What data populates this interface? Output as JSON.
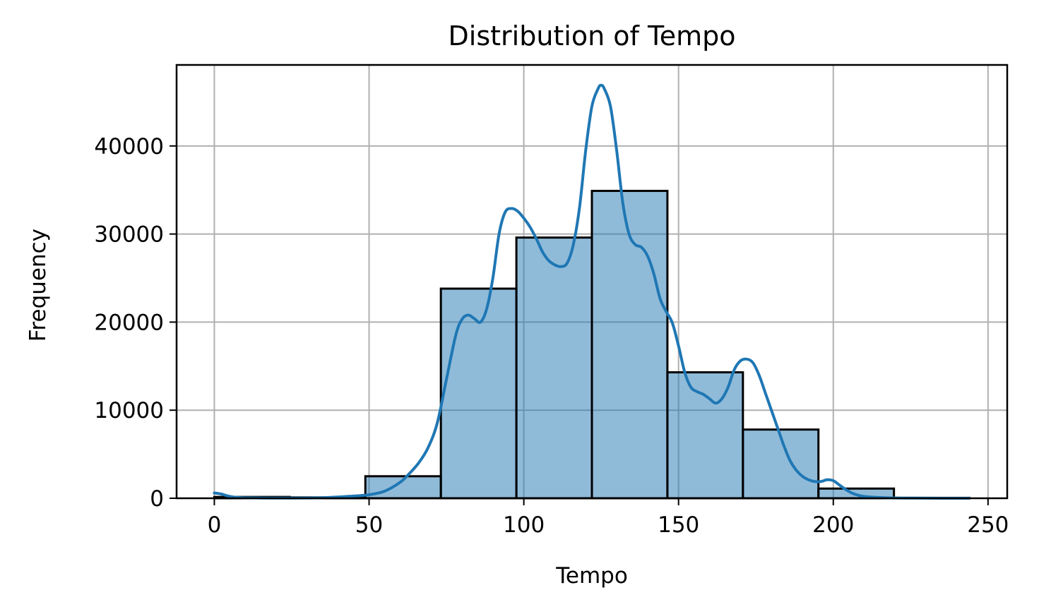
{
  "chart_data": {
    "type": "bar",
    "title": "Distribution of Tempo",
    "xlabel": "Tempo",
    "ylabel": "Frequency",
    "xlim": [
      -12.2,
      256.2
    ],
    "ylim": [
      0,
      49200
    ],
    "xticks": [
      0,
      50,
      100,
      150,
      200,
      250
    ],
    "xtick_labels": [
      "0",
      "50",
      "100",
      "150",
      "200",
      "250"
    ],
    "yticks": [
      0,
      10000,
      20000,
      30000,
      40000
    ],
    "ytick_labels": [
      "0",
      "10000",
      "20000",
      "30000",
      "40000"
    ],
    "grid": true,
    "bar_color": "#1f77b4",
    "bar_edge_color": "#000000",
    "kde_color": "#1f77b4",
    "bins": [
      {
        "x0": 0.0,
        "x1": 24.4,
        "count": 150
      },
      {
        "x0": 24.4,
        "x1": 48.8,
        "count": 100
      },
      {
        "x0": 48.8,
        "x1": 73.2,
        "count": 2500
      },
      {
        "x0": 73.2,
        "x1": 97.6,
        "count": 23800
      },
      {
        "x0": 97.6,
        "x1": 122.0,
        "count": 29600
      },
      {
        "x0": 122.0,
        "x1": 146.4,
        "count": 34900
      },
      {
        "x0": 146.4,
        "x1": 170.8,
        "count": 14300
      },
      {
        "x0": 170.8,
        "x1": 195.2,
        "count": 7800
      },
      {
        "x0": 195.2,
        "x1": 219.6,
        "count": 1100
      },
      {
        "x0": 219.6,
        "x1": 244.0,
        "count": 50
      }
    ],
    "kde": {
      "x": [
        0,
        2,
        4,
        6,
        8,
        10,
        15,
        20,
        25,
        30,
        35,
        40,
        45,
        50,
        55,
        60,
        63,
        66,
        69,
        72,
        75,
        78,
        80,
        82,
        84,
        86,
        88,
        90,
        92,
        94,
        96,
        98,
        100,
        102,
        104,
        106,
        108,
        110,
        112,
        114,
        116,
        118,
        120,
        122,
        124,
        125,
        126,
        128,
        130,
        132,
        134,
        136,
        138,
        140,
        142,
        144,
        146,
        148,
        150,
        152,
        154,
        156,
        158,
        160,
        162,
        164,
        166,
        168,
        170,
        172,
        174,
        176,
        178,
        180,
        182,
        184,
        186,
        188,
        190,
        192,
        194,
        196,
        198,
        200,
        202,
        204,
        206,
        208,
        210,
        215,
        220,
        225,
        230,
        235,
        240,
        244
      ],
      "y": [
        600,
        500,
        300,
        150,
        80,
        50,
        30,
        20,
        20,
        30,
        60,
        150,
        250,
        400,
        800,
        1800,
        2800,
        4000,
        5700,
        8500,
        13500,
        18500,
        20300,
        20800,
        20400,
        20000,
        21500,
        25000,
        30000,
        32500,
        32900,
        32600,
        31800,
        30800,
        29500,
        28000,
        27000,
        26500,
        26300,
        26700,
        28800,
        33000,
        39500,
        44500,
        46500,
        46900,
        46500,
        44500,
        39500,
        33500,
        30000,
        28800,
        28500,
        27500,
        25500,
        22700,
        21200,
        19900,
        17300,
        14300,
        12600,
        12100,
        11800,
        11300,
        10800,
        11300,
        12600,
        14600,
        15600,
        15800,
        15400,
        14000,
        12000,
        10000,
        8000,
        6000,
        4300,
        3200,
        2500,
        2100,
        1900,
        1900,
        2100,
        2000,
        1500,
        1000,
        600,
        350,
        200,
        80,
        30,
        15,
        10,
        5,
        5,
        5
      ]
    }
  }
}
